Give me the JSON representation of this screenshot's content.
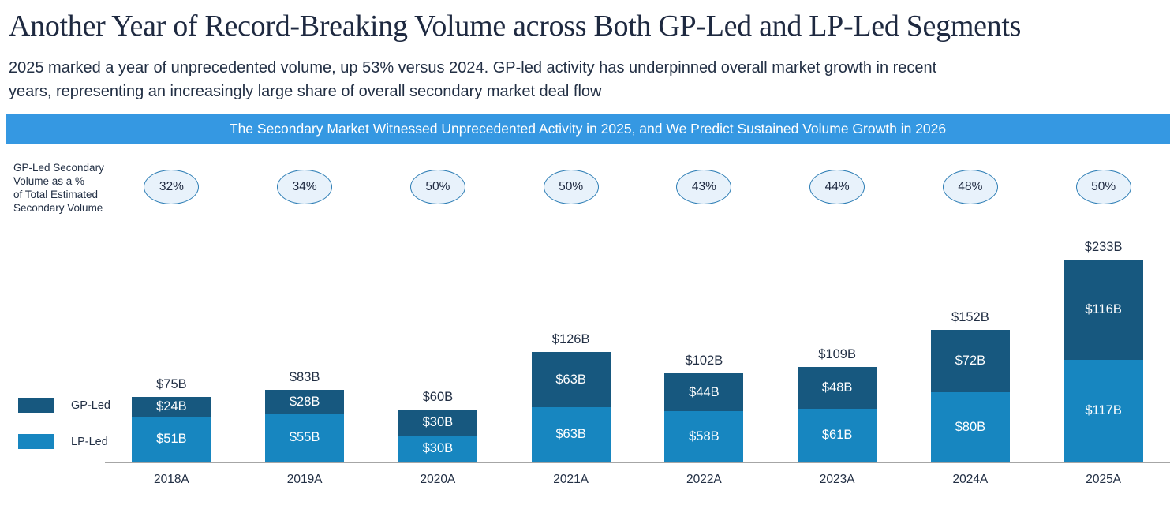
{
  "header": {
    "title": "Another Year of Record-Breaking Volume across Both GP-Led and LP-Led Segments",
    "subtitle": "2025 marked a year of unprecedented volume, up 53% versus 2024. GP-led activity has underpinned overall market growth in recent\nyears, representing an increasingly large share of overall secondary market deal flow"
  },
  "banner": {
    "text": "The Secondary Market Witnessed Unprecedented Activity in 2025, and We Predict Sustained Volume Growth in 2026",
    "bg_color": "#3598E2"
  },
  "side_label": "GP-Led Secondary\nVolume as a %\nof Total Estimated\nSecondary Volume",
  "legend": [
    {
      "label": "GP-Led",
      "color": "#17587F"
    },
    {
      "label": "LP-Led",
      "color": "#1786C0"
    }
  ],
  "chart_data": {
    "type": "bar",
    "stacked": true,
    "categories": [
      "2018A",
      "2019A",
      "2020A",
      "2021A",
      "2022A",
      "2023A",
      "2024A",
      "2025A"
    ],
    "series": [
      {
        "name": "GP-Led",
        "color": "#17587F",
        "values": [
          24,
          28,
          30,
          63,
          44,
          48,
          72,
          116
        ],
        "labels": [
          "$24B",
          "$28B",
          "$30B",
          "$63B",
          "$44B",
          "$48B",
          "$72B",
          "$116B"
        ]
      },
      {
        "name": "LP-Led",
        "color": "#1786C0",
        "values": [
          51,
          55,
          30,
          63,
          58,
          61,
          80,
          117
        ],
        "labels": [
          "$51B",
          "$55B",
          "$30B",
          "$63B",
          "$58B",
          "$61B",
          "$80B",
          "$117B"
        ]
      }
    ],
    "totals": [
      75,
      83,
      60,
      126,
      102,
      109,
      152,
      233
    ],
    "total_labels": [
      "$75B",
      "$83B",
      "$60B",
      "$126B",
      "$102B",
      "$109B",
      "$152B",
      "$233B"
    ],
    "gp_share_percent": [
      "32%",
      "34%",
      "50%",
      "50%",
      "43%",
      "44%",
      "48%",
      "50%"
    ],
    "unit": "$B",
    "ylim": [
      0,
      233
    ],
    "grid": false,
    "legend_position": "left",
    "bubble_fill": "#E8F2FB",
    "bubble_border": "#2E7EB5",
    "axis_line_color": "#a6a6a6"
  }
}
